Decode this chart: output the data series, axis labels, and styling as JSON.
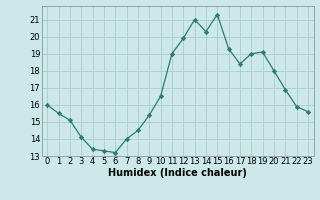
{
  "x": [
    0,
    1,
    2,
    3,
    4,
    5,
    6,
    7,
    8,
    9,
    10,
    11,
    12,
    13,
    14,
    15,
    16,
    17,
    18,
    19,
    20,
    21,
    22,
    23
  ],
  "y": [
    16.0,
    15.5,
    15.1,
    14.1,
    13.4,
    13.3,
    13.2,
    14.0,
    14.5,
    15.4,
    16.5,
    19.0,
    19.9,
    21.0,
    20.3,
    21.3,
    19.3,
    18.4,
    19.0,
    19.1,
    18.0,
    16.9,
    15.9,
    15.6
  ],
  "line_color": "#2e7b6e",
  "marker": "D",
  "marker_size": 2.2,
  "xlabel": "Humidex (Indice chaleur)",
  "xlim": [
    -0.5,
    23.5
  ],
  "ylim": [
    13,
    21.8
  ],
  "yticks": [
    13,
    14,
    15,
    16,
    17,
    18,
    19,
    20,
    21
  ],
  "xticks": [
    0,
    1,
    2,
    3,
    4,
    5,
    6,
    7,
    8,
    9,
    10,
    11,
    12,
    13,
    14,
    15,
    16,
    17,
    18,
    19,
    20,
    21,
    22,
    23
  ],
  "xtick_labels": [
    "0",
    "1",
    "2",
    "3",
    "4",
    "5",
    "6",
    "7",
    "8",
    "9",
    "10",
    "11",
    "12",
    "13",
    "14",
    "15",
    "16",
    "17",
    "18",
    "19",
    "20",
    "21",
    "22",
    "23"
  ],
  "bg_color": "#cce8e8",
  "grid_color": "#aacccc",
  "xlabel_fontsize": 7,
  "tick_fontsize": 6
}
